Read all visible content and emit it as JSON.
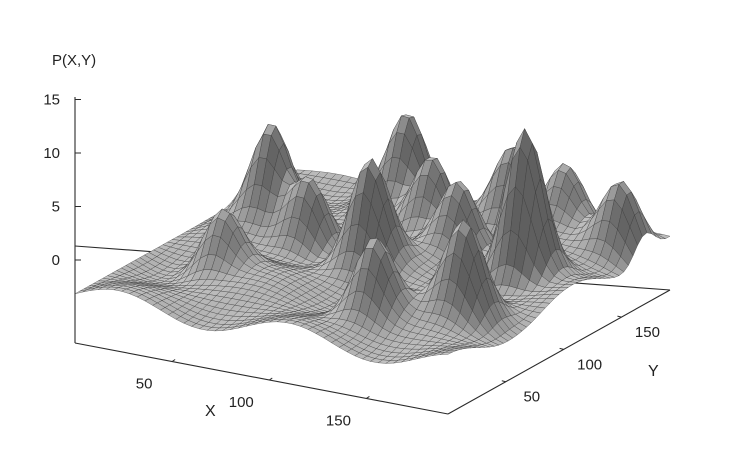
{
  "chart_data": {
    "type": "surface",
    "title": "",
    "zlabel": "P(X,Y)",
    "xlabel": "X",
    "ylabel": "Y",
    "zticks": [
      0,
      5,
      10,
      15
    ],
    "xticks": [
      50,
      100,
      150
    ],
    "yticks": [
      50,
      100,
      150
    ],
    "xlim": [
      0,
      192
    ],
    "ylim": [
      0,
      192
    ],
    "zlim": [
      0,
      15
    ],
    "baseline_z": 3,
    "surface_color": "#b4b4b4",
    "peaks": [
      {
        "x": 30,
        "y": 120,
        "z": 6.5
      },
      {
        "x": 70,
        "y": 170,
        "z": 6
      },
      {
        "x": 40,
        "y": 60,
        "z": 4.5
      },
      {
        "x": 95,
        "y": 95,
        "z": 7
      },
      {
        "x": 95,
        "y": 150,
        "z": 5.5
      },
      {
        "x": 55,
        "y": 110,
        "z": 5
      },
      {
        "x": 130,
        "y": 40,
        "z": 5.5
      },
      {
        "x": 160,
        "y": 120,
        "z": 10
      },
      {
        "x": 120,
        "y": 130,
        "z": 5
      },
      {
        "x": 165,
        "y": 60,
        "z": 6
      },
      {
        "x": 15,
        "y": 150,
        "z": 4.5
      },
      {
        "x": 115,
        "y": 185,
        "z": 5
      },
      {
        "x": 145,
        "y": 180,
        "z": 4.5
      },
      {
        "x": 180,
        "y": 170,
        "z": 5
      }
    ]
  }
}
